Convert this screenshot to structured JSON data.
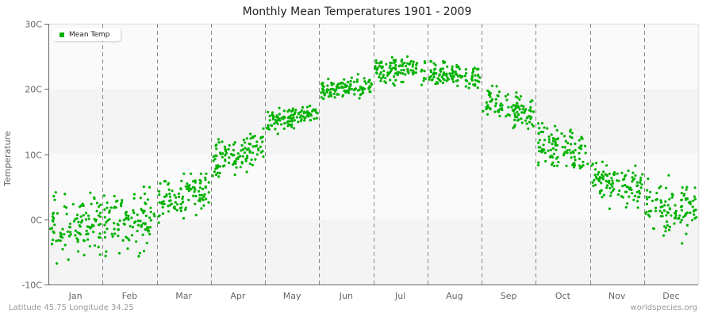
{
  "title": "Monthly Mean Temperatures 1901 - 2009",
  "footer": {
    "location": "Latitude 45.75 Longitude 34.25",
    "source": "worldspecies.org"
  },
  "legend": {
    "label": "Mean Temp",
    "color": "#00b200"
  },
  "colors": {
    "point": "#00b200",
    "band_light": "#fafafa",
    "band_dark": "#f4f4f4",
    "axis": "#666666",
    "divider": "#888888",
    "tick_text": "#666666"
  },
  "chart_data": {
    "type": "scatter",
    "title": "Monthly Mean Temperatures 1901 - 2009",
    "xlabel": "",
    "ylabel": "Temperature",
    "ylim": [
      -10,
      30
    ],
    "yticks": [
      "30C",
      "20C",
      "10C",
      "0C",
      "-10C"
    ],
    "ytick_values": [
      30,
      20,
      10,
      0,
      -10
    ],
    "categories": [
      "Jan",
      "Feb",
      "Mar",
      "Apr",
      "May",
      "Jun",
      "Jul",
      "Aug",
      "Sep",
      "Oct",
      "Nov",
      "Dec"
    ],
    "grid": "alternating horizontal bands, dashed vertical month dividers",
    "legend_position": "top-left",
    "points_per_month": 109,
    "series": [
      {
        "name": "Mean Temp",
        "monthly_summary": [
          {
            "month": "Jan",
            "mean": -1.0,
            "min": -9.0,
            "max": 5.5
          },
          {
            "month": "Feb",
            "mean": -0.5,
            "min": -10.0,
            "max": 5.0
          },
          {
            "month": "Mar",
            "mean": 3.5,
            "min": -2.5,
            "max": 7.0
          },
          {
            "month": "Apr",
            "mean": 10.0,
            "min": 5.5,
            "max": 14.5
          },
          {
            "month": "May",
            "mean": 15.8,
            "min": 13.0,
            "max": 18.5
          },
          {
            "month": "Jun",
            "mean": 20.2,
            "min": 18.5,
            "max": 23.5
          },
          {
            "month": "Jul",
            "mean": 23.0,
            "min": 20.5,
            "max": 26.5
          },
          {
            "month": "Aug",
            "mean": 22.3,
            "min": 20.0,
            "max": 26.0
          },
          {
            "month": "Sep",
            "mean": 17.3,
            "min": 13.5,
            "max": 21.0
          },
          {
            "month": "Oct",
            "mean": 11.0,
            "min": 6.5,
            "max": 16.0
          },
          {
            "month": "Nov",
            "mean": 5.5,
            "min": 0.0,
            "max": 9.0
          },
          {
            "month": "Dec",
            "mean": 1.5,
            "min": -4.5,
            "max": 7.5
          }
        ]
      }
    ]
  }
}
